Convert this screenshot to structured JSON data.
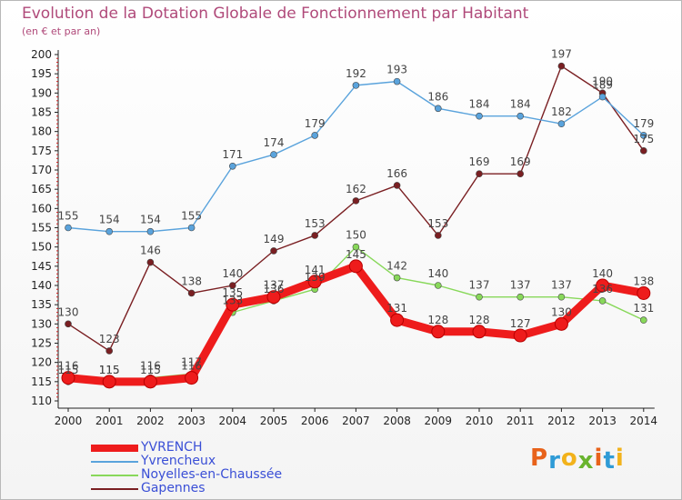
{
  "header": {
    "title": "Evolution de la Dotation Globale de Fonctionnement par Habitant",
    "subtitle": "(en € et par an)"
  },
  "logo": {
    "letters": [
      "P",
      "r",
      "o",
      "x",
      "i",
      "t",
      "i"
    ],
    "colors": [
      "#e8621a",
      "#2f9bd6",
      "#f2b21b",
      "#69b42e",
      "#e8621a",
      "#2f9bd6",
      "#f2b21b"
    ]
  },
  "chart_data": {
    "type": "line",
    "title": "Evolution de la Dotation Globale de Fonctionnement par Habitant",
    "subtitle": "(en € et par an)",
    "xlabel": "",
    "ylabel": "",
    "ylim": [
      110,
      200
    ],
    "ytick_step": 5,
    "grid": false,
    "legend_position": "bottom-left",
    "categories": [
      "2000",
      "2001",
      "2002",
      "2003",
      "2004",
      "2005",
      "2006",
      "2007",
      "2008",
      "2009",
      "2010",
      "2011",
      "2012",
      "2013",
      "2014"
    ],
    "series": [
      {
        "name": "Gapennes",
        "color": "#7a1f22",
        "values": [
          130,
          123,
          146,
          138,
          140,
          149,
          153,
          162,
          166,
          153,
          169,
          169,
          197,
          190,
          175
        ],
        "labels": [
          "130",
          "123",
          "146",
          "138",
          "140",
          "149",
          "153",
          "162",
          "166",
          "153",
          "169",
          "169",
          "197",
          "190",
          "175"
        ]
      },
      {
        "name": "Noyelles-en-Chaussée",
        "color": "#88d85a",
        "values": [
          115,
          115,
          116,
          117,
          133,
          136,
          139,
          150,
          142,
          140,
          137,
          137,
          137,
          136,
          131
        ],
        "labels": [
          "115",
          "115",
          "116",
          "117",
          "133",
          "136",
          "139",
          "150",
          "142",
          "140",
          "137",
          "137",
          "137",
          "136",
          "131"
        ]
      },
      {
        "name": "Yvrencheux",
        "color": "#5aa3dc",
        "values": [
          155,
          154,
          154,
          155,
          171,
          174,
          179,
          192,
          193,
          186,
          184,
          184,
          182,
          189,
          179
        ],
        "labels": [
          "155",
          "154",
          "154",
          "155",
          "171",
          "174",
          "179",
          "192",
          "193",
          "186",
          "184",
          "184",
          "182",
          "189",
          "179"
        ]
      },
      {
        "name": "YVRENCH",
        "color": "#ee1c1c",
        "values": [
          116,
          115,
          115,
          116,
          135,
          137,
          141,
          145,
          131,
          128,
          128,
          127,
          130,
          140,
          138
        ],
        "labels": [
          "116",
          "115",
          "115",
          "116",
          "135",
          "137",
          "141",
          "145",
          "131",
          "128",
          "128",
          "127",
          "130",
          "140",
          "138"
        ]
      }
    ],
    "legend": [
      "YVRENCH",
      "Yvrencheux",
      "Noyelles-en-Chaussée",
      "Gapennes"
    ]
  }
}
